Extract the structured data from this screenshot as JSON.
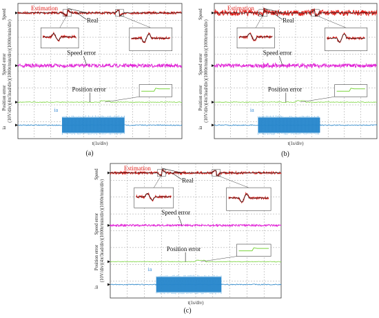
{
  "figure": {
    "captions": [
      "(a)",
      "(b)",
      "(c)"
    ],
    "colors": {
      "estimation": "#e0201b",
      "real": "#1a1a1a",
      "speed_error": "#e021d6",
      "position_error": "#7ad43c",
      "ia": "#1f7fc6",
      "grid": "#9a9a9a"
    }
  },
  "chart_data": [
    {
      "type": "line",
      "panel": "(a)",
      "traces": [
        {
          "name": "Speed",
          "annotations": [
            "Estimation",
            "Real"
          ]
        },
        {
          "name": "Speed error",
          "annotations": [
            "Speed error"
          ]
        },
        {
          "name": "Position error",
          "annotations": [
            "Position error"
          ]
        },
        {
          "name": "ia",
          "annotations": [
            "ia"
          ]
        }
      ],
      "y_axis_labels": [
        "Speed",
        "Speed error",
        "Position error",
        "ia"
      ],
      "y_scale_label": "(10V/div)(4π/3rad/div)(1000r/min/div)(1000r/min/div)",
      "xlabel": "t(1s/div)",
      "grid": true,
      "divisions": {
        "x": 10,
        "y": 8
      }
    },
    {
      "type": "line",
      "panel": "(b)",
      "traces": [
        {
          "name": "Speed",
          "annotations": [
            "Estimation",
            "Real"
          ]
        },
        {
          "name": "Speed error",
          "annotations": [
            "Speed error"
          ]
        },
        {
          "name": "Position error",
          "annotations": [
            "Position error"
          ]
        },
        {
          "name": "ia",
          "annotations": [
            "ia"
          ]
        }
      ],
      "y_axis_labels": [
        "Speed",
        "Speed error",
        "Position error",
        "ia"
      ],
      "y_scale_label": "(10V/div)(4π/3rad/div)(1000r/min/div)(1000r/min/div)",
      "xlabel": "t(1s/div)",
      "grid": true,
      "divisions": {
        "x": 10,
        "y": 8
      }
    },
    {
      "type": "line",
      "panel": "(c)",
      "traces": [
        {
          "name": "Speed",
          "annotations": [
            "Estimation",
            "Real"
          ]
        },
        {
          "name": "Speed error",
          "annotations": [
            "Speed error"
          ]
        },
        {
          "name": "Position error",
          "annotations": [
            "Position error"
          ]
        },
        {
          "name": "ia",
          "annotations": [
            "ia"
          ]
        }
      ],
      "y_axis_labels": [
        "Speed",
        "Speed error",
        "Position error",
        "ia"
      ],
      "y_scale_label": "(10V/div)(4π/3rad/div)(1000r/min/div)(1000r/min/div)",
      "xlabel": "t(1s/div)",
      "grid": true,
      "divisions": {
        "x": 10,
        "y": 8
      }
    }
  ]
}
